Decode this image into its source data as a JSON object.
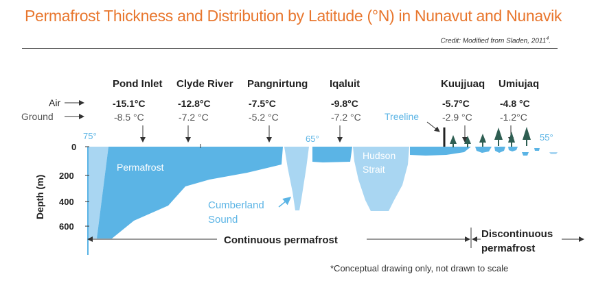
{
  "title": "Permafrost Thickness and Distribution by Latitude (°N) in Nunavut and Nunavik",
  "credit": {
    "text": "Credit: Modified from Sladen,  2011",
    "ref": "4",
    "end": "."
  },
  "row_labels": {
    "air": "Air",
    "ground": "Ground"
  },
  "locations": [
    {
      "name": "Pond Inlet",
      "air": "-15.1°C",
      "ground": "-8.5 °C"
    },
    {
      "name": "Clyde River",
      "air": "-12.8°C",
      "ground": "-7.2 °C"
    },
    {
      "name": "Pangnirtung",
      "air": "-7.5°C",
      "ground": "-5.2 °C"
    },
    {
      "name": "Iqaluit",
      "air": "-9.8°C",
      "ground": "-7.2 °C"
    },
    {
      "name": "Kuujjuaq",
      "air": "-5.7°C",
      "ground": "-2.9 °C"
    },
    {
      "name": "Umiujaq",
      "air": "-4.8 °C",
      "ground": "-1.2°C"
    }
  ],
  "latitudes": [
    "75°",
    "65°",
    "55°"
  ],
  "y_axis": {
    "label": "Depth (m)",
    "ticks": [
      "0",
      "200",
      "400",
      "600"
    ]
  },
  "labels": {
    "permafrost": "Permafrost",
    "cumberland_1": "Cumberland",
    "cumberland_2": "Sound",
    "hudson_1": "Hudson",
    "hudson_2": "Strait",
    "treeline": "Treeline"
  },
  "zones": {
    "continuous": "Continuous permafrost",
    "discontinuous_1": "Discontinuous",
    "discontinuous_2": "permafrost"
  },
  "footnote": "*Conceptual drawing only, not drawn to scale",
  "colors": {
    "title": "#e8762d",
    "permafrost": "#5bb4e5",
    "water": "#a9d6f2",
    "treeline": "#5bb4e5",
    "tree": "#2e5e52"
  }
}
